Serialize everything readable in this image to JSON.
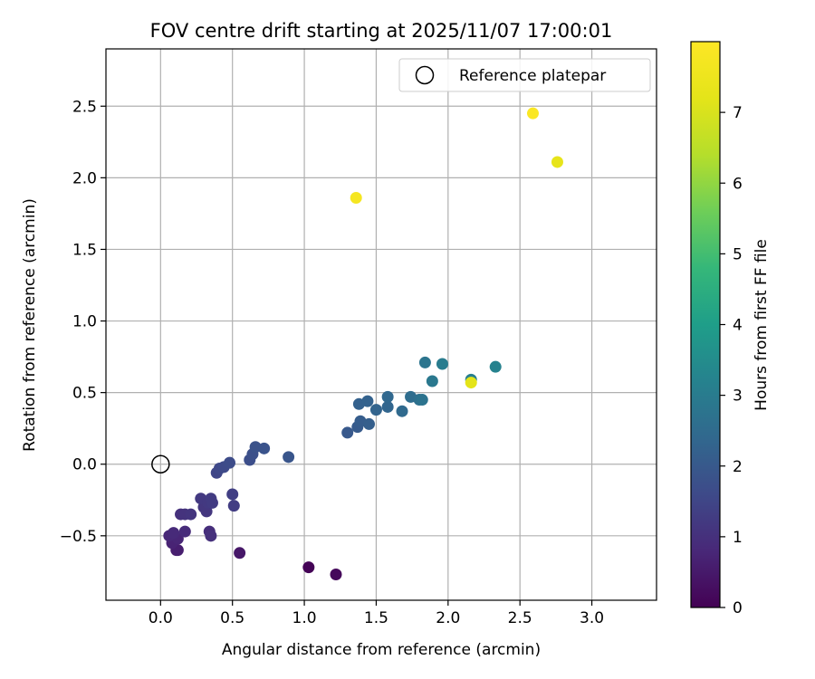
{
  "chart_data": {
    "type": "scatter",
    "title": "FOV centre drift starting at 2025/11/07 17:00:01",
    "xlabel": "Angular distance from reference (arcmin)",
    "ylabel": "Rotation from reference (arcmin)",
    "xlim": [
      -0.38,
      3.45
    ],
    "ylim": [
      -0.95,
      2.9
    ],
    "x_ticks": [
      0.0,
      0.5,
      1.0,
      1.5,
      2.0,
      2.5,
      3.0
    ],
    "y_ticks": [
      -0.5,
      0.0,
      0.5,
      1.0,
      1.5,
      2.0,
      2.5
    ],
    "x_tick_labels": [
      "0.0",
      "0.5",
      "1.0",
      "1.5",
      "2.0",
      "2.5",
      "3.0"
    ],
    "y_tick_labels": [
      "−0.5",
      "0.0",
      "0.5",
      "1.0",
      "1.5",
      "2.0",
      "2.5"
    ],
    "grid": true,
    "legend": {
      "position": "top-right",
      "entries": [
        {
          "label": "Reference platepar",
          "marker": "open-circle"
        }
      ]
    },
    "reference_point": {
      "x": 0.0,
      "y": 0.0
    },
    "colorbar": {
      "label": "Hours from first FF file",
      "colormap": "viridis",
      "range": [
        0,
        8
      ],
      "ticks": [
        0,
        1,
        2,
        3,
        4,
        5,
        6,
        7
      ],
      "tick_labels": [
        "0",
        "1",
        "2",
        "3",
        "4",
        "5",
        "6",
        "7"
      ]
    },
    "points": [
      {
        "x": 1.03,
        "y": -0.72,
        "hours": 0.05
      },
      {
        "x": 1.22,
        "y": -0.77,
        "hours": 0.15
      },
      {
        "x": 0.55,
        "y": -0.62,
        "hours": 0.45
      },
      {
        "x": 0.11,
        "y": -0.6,
        "hours": 0.55
      },
      {
        "x": 0.12,
        "y": -0.6,
        "hours": 0.6
      },
      {
        "x": 0.08,
        "y": -0.55,
        "hours": 0.7
      },
      {
        "x": 0.12,
        "y": -0.52,
        "hours": 0.75
      },
      {
        "x": 0.06,
        "y": -0.5,
        "hours": 0.8
      },
      {
        "x": 0.09,
        "y": -0.48,
        "hours": 0.85
      },
      {
        "x": 0.17,
        "y": -0.47,
        "hours": 0.9
      },
      {
        "x": 0.34,
        "y": -0.47,
        "hours": 0.95
      },
      {
        "x": 0.35,
        "y": -0.5,
        "hours": 1.0
      },
      {
        "x": 0.14,
        "y": -0.35,
        "hours": 1.0
      },
      {
        "x": 0.17,
        "y": -0.35,
        "hours": 1.05
      },
      {
        "x": 0.21,
        "y": -0.35,
        "hours": 1.1
      },
      {
        "x": 0.32,
        "y": -0.33,
        "hours": 1.15
      },
      {
        "x": 0.3,
        "y": -0.3,
        "hours": 1.15
      },
      {
        "x": 0.28,
        "y": -0.24,
        "hours": 1.2
      },
      {
        "x": 0.33,
        "y": -0.27,
        "hours": 1.2
      },
      {
        "x": 0.35,
        "y": -0.24,
        "hours": 1.25
      },
      {
        "x": 0.36,
        "y": -0.27,
        "hours": 1.25
      },
      {
        "x": 0.51,
        "y": -0.29,
        "hours": 1.3
      },
      {
        "x": 0.5,
        "y": -0.21,
        "hours": 1.35
      },
      {
        "x": 0.39,
        "y": -0.06,
        "hours": 1.5
      },
      {
        "x": 0.41,
        "y": -0.03,
        "hours": 1.55
      },
      {
        "x": 0.44,
        "y": -0.02,
        "hours": 1.6
      },
      {
        "x": 0.48,
        "y": 0.01,
        "hours": 1.65
      },
      {
        "x": 0.62,
        "y": 0.03,
        "hours": 1.7
      },
      {
        "x": 0.64,
        "y": 0.07,
        "hours": 1.75
      },
      {
        "x": 0.66,
        "y": 0.12,
        "hours": 1.8
      },
      {
        "x": 0.72,
        "y": 0.11,
        "hours": 1.85
      },
      {
        "x": 0.89,
        "y": 0.05,
        "hours": 1.9
      },
      {
        "x": 1.3,
        "y": 0.22,
        "hours": 2.0
      },
      {
        "x": 1.37,
        "y": 0.26,
        "hours": 2.05
      },
      {
        "x": 1.39,
        "y": 0.3,
        "hours": 2.1
      },
      {
        "x": 1.45,
        "y": 0.28,
        "hours": 2.15
      },
      {
        "x": 1.38,
        "y": 0.42,
        "hours": 2.2
      },
      {
        "x": 1.44,
        "y": 0.44,
        "hours": 2.25
      },
      {
        "x": 1.5,
        "y": 0.38,
        "hours": 2.3
      },
      {
        "x": 1.58,
        "y": 0.4,
        "hours": 2.35
      },
      {
        "x": 1.58,
        "y": 0.47,
        "hours": 2.4
      },
      {
        "x": 1.68,
        "y": 0.37,
        "hours": 2.45
      },
      {
        "x": 1.74,
        "y": 0.47,
        "hours": 2.55
      },
      {
        "x": 1.8,
        "y": 0.45,
        "hours": 2.65
      },
      {
        "x": 1.82,
        "y": 0.45,
        "hours": 2.75
      },
      {
        "x": 1.84,
        "y": 0.71,
        "hours": 2.8
      },
      {
        "x": 1.89,
        "y": 0.58,
        "hours": 2.9
      },
      {
        "x": 1.96,
        "y": 0.7,
        "hours": 3.0
      },
      {
        "x": 2.16,
        "y": 0.59,
        "hours": 3.1
      },
      {
        "x": 2.33,
        "y": 0.68,
        "hours": 3.2
      },
      {
        "x": 2.16,
        "y": 0.57,
        "hours": 7.2
      },
      {
        "x": 1.36,
        "y": 1.86,
        "hours": 7.75
      },
      {
        "x": 2.76,
        "y": 2.11,
        "hours": 7.3
      },
      {
        "x": 2.59,
        "y": 2.45,
        "hours": 7.9
      }
    ]
  }
}
